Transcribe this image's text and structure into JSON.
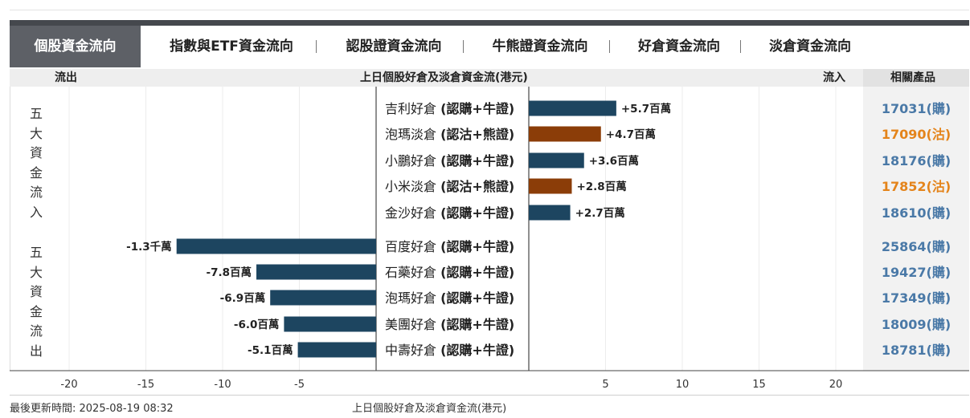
{
  "tabs": [
    {
      "label": "個股資金流向",
      "active": true
    },
    {
      "label": "指數與ETF資金流向",
      "active": false
    },
    {
      "label": "認股證資金流向",
      "active": false
    },
    {
      "label": "牛熊證資金流向",
      "active": false
    },
    {
      "label": "好倉資金流向",
      "active": false
    },
    {
      "label": "淡倉資金流向",
      "active": false
    }
  ],
  "header": {
    "outflow": "流出",
    "title": "上日個股好倉及淡倉資金流(港元)",
    "inflow": "流入",
    "related": "相關產品"
  },
  "side_labels": {
    "inflow": "五\n大\n資\n金\n流\n入",
    "outflow": "五\n大\n資\n金\n流\n出"
  },
  "colors": {
    "bull": "#1d4560",
    "bear": "#8b3d08",
    "bull_link": "#4a79a7",
    "bear_link": "#e4841b"
  },
  "chart_data": {
    "type": "bar",
    "orientation": "horizontal",
    "title": "上日個股好倉及淡倉資金流(港元)",
    "unit": "百萬 HKD",
    "xlim": [
      -20,
      20
    ],
    "xticks": [
      -20,
      -15,
      -10,
      -5,
      5,
      10,
      15,
      20
    ],
    "rows": [
      {
        "name": "吉利好倉",
        "type": "(認購+牛證)",
        "value": 5.7,
        "label": "+5.7百萬",
        "kind": "bull",
        "product": "17031(購)"
      },
      {
        "name": "泡瑪淡倉",
        "type": "(認沽+熊證)",
        "value": 4.7,
        "label": "+4.7百萬",
        "kind": "bear",
        "product": "17090(沽)"
      },
      {
        "name": "小鵬好倉",
        "type": "(認購+牛證)",
        "value": 3.6,
        "label": "+3.6百萬",
        "kind": "bull",
        "product": "18176(購)"
      },
      {
        "name": "小米淡倉",
        "type": "(認沽+熊證)",
        "value": 2.8,
        "label": "+2.8百萬",
        "kind": "bear",
        "product": "17852(沽)"
      },
      {
        "name": "金沙好倉",
        "type": "(認購+牛證)",
        "value": 2.7,
        "label": "+2.7百萬",
        "kind": "bull",
        "product": "18610(購)"
      },
      {
        "name": "百度好倉",
        "type": "(認購+牛證)",
        "value": -13,
        "label": "-1.3千萬",
        "kind": "bull",
        "product": "25864(購)"
      },
      {
        "name": "石藥好倉",
        "type": "(認購+牛證)",
        "value": -7.8,
        "label": "-7.8百萬",
        "kind": "bull",
        "product": "19427(購)"
      },
      {
        "name": "泡瑪好倉",
        "type": "(認購+牛證)",
        "value": -6.9,
        "label": "-6.9百萬",
        "kind": "bull",
        "product": "17349(購)"
      },
      {
        "name": "美團好倉",
        "type": "(認購+牛證)",
        "value": -6.0,
        "label": "-6.0百萬",
        "kind": "bull",
        "product": "18009(購)"
      },
      {
        "name": "中壽好倉",
        "type": "(認購+牛證)",
        "value": -5.1,
        "label": "-5.1百萬",
        "kind": "bull",
        "product": "18781(購)"
      }
    ]
  },
  "footer": {
    "updated": "最後更新時間: 2025-08-19 08:32",
    "caption": "上日個股好倉及淡倉資金流(港元)"
  }
}
